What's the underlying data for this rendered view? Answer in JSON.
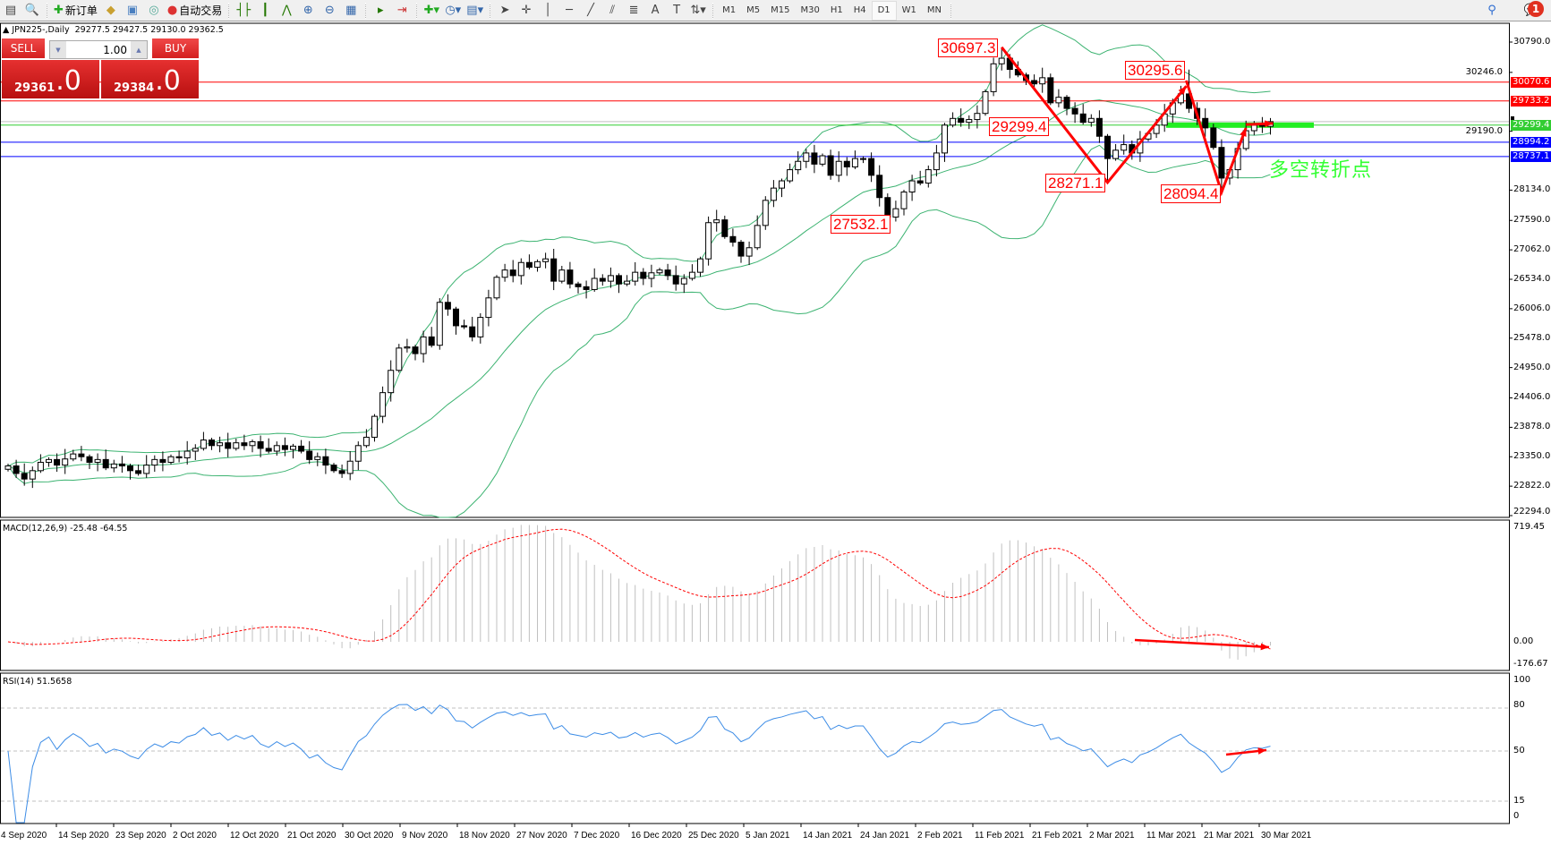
{
  "toolbar": {
    "new_order_label": "新订单",
    "auto_trading_label": "自动交易",
    "timeframes": [
      "M1",
      "M5",
      "M15",
      "M30",
      "H1",
      "H4",
      "D1",
      "W1",
      "MN"
    ],
    "active_timeframe": "D1",
    "notification_count": "1"
  },
  "chart_header": {
    "symbol": "▲ JPN225-,Daily",
    "ohlc": "29277.5 29427.5 29130.0 29362.5"
  },
  "one_click": {
    "sell_label": "SELL",
    "buy_label": "BUY",
    "lots": "1.00",
    "sell_price_main": "29361",
    "sell_price_big": ".0",
    "buy_price_main": "29384",
    "buy_price_big": ".0",
    "color": "#d42020"
  },
  "chart_data": {
    "type": "candlestick",
    "symbol": "JPN225-",
    "period": "Daily",
    "last_ohlc": [
      29277.5,
      29427.5,
      29130.0,
      29362.5
    ],
    "closes": [
      23185,
      23050,
      22950,
      23100,
      23250,
      23300,
      23200,
      23310,
      23400,
      23350,
      23250,
      23300,
      23150,
      23220,
      23185,
      23100,
      23050,
      23200,
      23300,
      23250,
      23350,
      23330,
      23450,
      23500,
      23650,
      23550,
      23600,
      23500,
      23600,
      23550,
      23620,
      23500,
      23450,
      23550,
      23480,
      23540,
      23450,
      23300,
      23350,
      23200,
      23100,
      23050,
      23270,
      23550,
      23700,
      24075,
      24500,
      24900,
      25300,
      25320,
      25200,
      25500,
      25350,
      26120,
      26000,
      25700,
      25680,
      25500,
      25850,
      26200,
      26570,
      26700,
      26600,
      26835,
      26750,
      26850,
      26900,
      26500,
      26700,
      26450,
      26400,
      26350,
      26550,
      26500,
      26600,
      26450,
      26500,
      26660,
      26550,
      26650,
      26700,
      26600,
      26450,
      26550,
      26660,
      26900,
      27550,
      27600,
      27300,
      27200,
      26950,
      27100,
      27500,
      27950,
      28170,
      28300,
      28500,
      28650,
      28800,
      28600,
      28750,
      28400,
      28650,
      28550,
      28700,
      28700,
      28400,
      28000,
      27650,
      27800,
      28100,
      28300,
      28260,
      28500,
      28800,
      29300,
      29420,
      29350,
      29400,
      29510,
      29900,
      30400,
      30500,
      30300,
      30200,
      30100,
      30040,
      30150,
      29700,
      29800,
      29600,
      29500,
      29350,
      29420,
      29100,
      28700,
      28850,
      28950,
      28800,
      29050,
      29150,
      29300,
      29500,
      29700,
      29860,
      29600,
      29420,
      29250,
      28900,
      28350,
      28500,
      28880,
      29200,
      29300,
      29277.5,
      29362.5
    ],
    "price_axis": {
      "max": 30790,
      "min": 22294,
      "ticks": [
        "30790.0",
        "30246.0",
        "29190.0",
        "28134.0",
        "27590.0",
        "27062.0",
        "26534.0",
        "26006.0",
        "25478.0",
        "24950.0",
        "24406.0",
        "23878.0",
        "23350.0",
        "22822.0",
        "22294.0"
      ]
    },
    "time_labels": [
      "4 Sep 2020",
      "14 Sep 2020",
      "23 Sep 2020",
      "2 Oct 2020",
      "12 Oct 2020",
      "21 Oct 2020",
      "30 Oct 2020",
      "9 Nov 2020",
      "18 Nov 2020",
      "27 Nov 2020",
      "7 Dec 2020",
      "16 Dec 2020",
      "25 Dec 2020",
      "5 Jan 2021",
      "14 Jan 2021",
      "24 Jan 2021",
      "2 Feb 2021",
      "11 Feb 2021",
      "21 Feb 2021",
      "2 Mar 2021",
      "11 Mar 2021",
      "21 Mar 2021",
      "30 Mar 2021"
    ],
    "horizontal_lines": [
      {
        "price": 30070.6,
        "label": "30070.6",
        "color": "#ff0000"
      },
      {
        "price": 29733.2,
        "label": "29733.2",
        "color": "#ff0000"
      },
      {
        "price": 29362.5,
        "label": "",
        "color": "#c0c0c0"
      },
      {
        "price": 29299.4,
        "label": "29299.4",
        "color": "#32cd32"
      },
      {
        "price": 28994.2,
        "label": "28994.2",
        "color": "#0000ff"
      },
      {
        "price": 28737.1,
        "label": "28737.1",
        "color": "#0000ff"
      }
    ],
    "annotations": [
      {
        "text": "30697.3",
        "bar": 122,
        "price": 30697.3,
        "kind": "high"
      },
      {
        "text": "30295.6",
        "bar": 145,
        "price": 30295.6,
        "kind": "high"
      },
      {
        "text": "29299.4",
        "bar": 118,
        "price": 29299.4,
        "kind": "level"
      },
      {
        "text": "28271.1",
        "bar": 135,
        "price": 28271.1,
        "kind": "low"
      },
      {
        "text": "27532.1",
        "bar": 108,
        "price": 27532.1,
        "kind": "low"
      },
      {
        "text": "28094.4",
        "bar": 149,
        "price": 28094.4,
        "kind": "low"
      }
    ],
    "turning_point_text": "多空转折点",
    "bollinger_color": "#3cb371",
    "macd": {
      "title": "MACD(12,26,9) -25.48 -64.55",
      "axis_max": "719.45",
      "axis_zero": "0.00",
      "axis_min": "-176.67",
      "max": 719.45,
      "min": -176.67,
      "signal_color": "#ff0000",
      "hist_color": "#c0c0c0"
    },
    "rsi": {
      "title": "RSI(14) 51.5658",
      "levels": [
        "100",
        "80",
        "50",
        "15",
        "0"
      ],
      "color": "#3c8ce6"
    }
  }
}
